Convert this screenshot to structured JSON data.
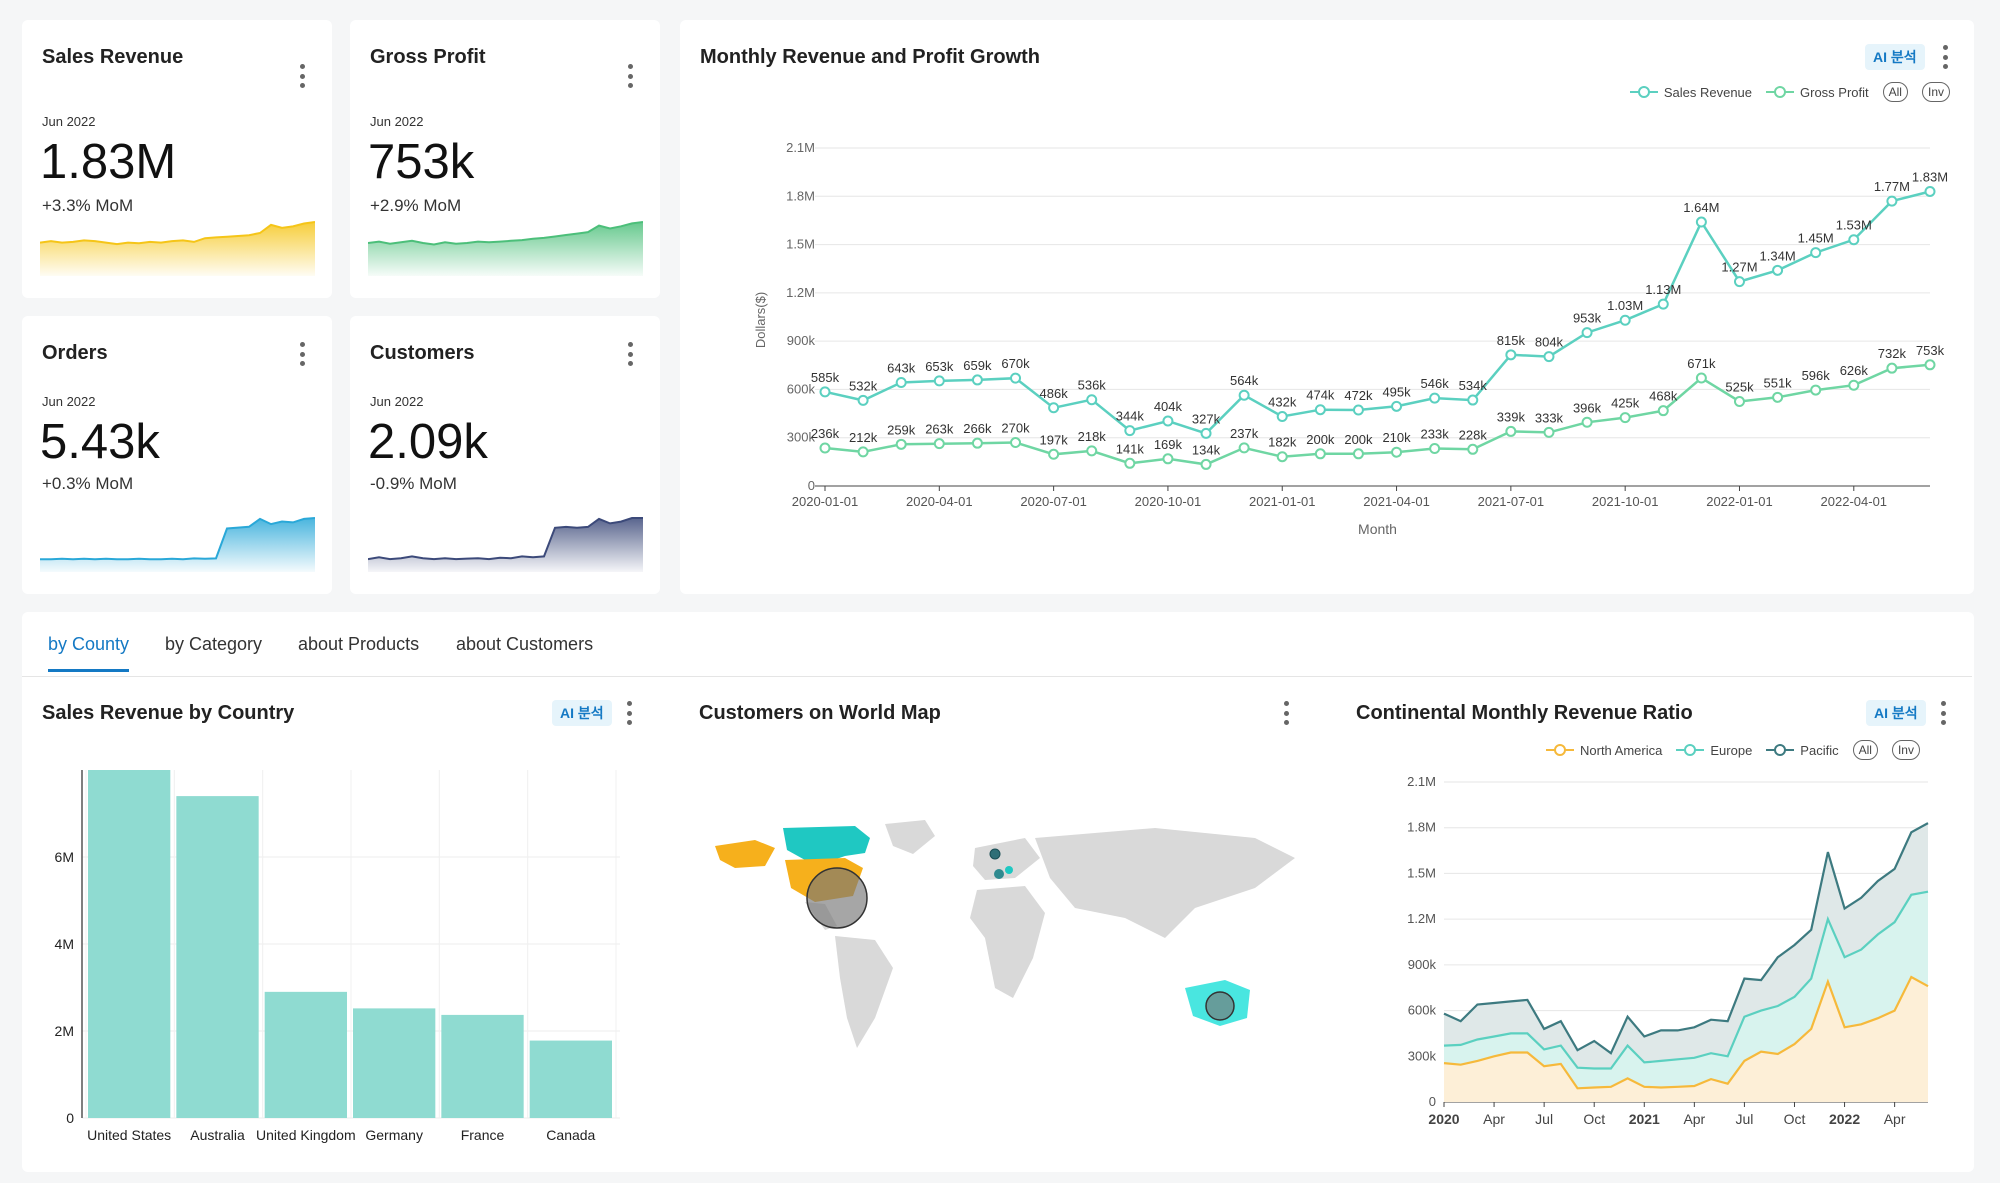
{
  "kpis": [
    {
      "title": "Sales Revenue",
      "date": "Jun 2022",
      "value": "1.83M",
      "delta": "+3.3% MoM",
      "color": "#f5c518",
      "spark": [
        4,
        4.2,
        4,
        4.1,
        4.3,
        4.2,
        4.0,
        3.8,
        4.0,
        3.9,
        4.1,
        4.0,
        4.2,
        4.3,
        4.1,
        4.6,
        4.7,
        4.8,
        4.9,
        5.0,
        5.3,
        6.4,
        6.0,
        6.2,
        6.6,
        6.8
      ]
    },
    {
      "title": "Gross Profit",
      "date": "Jun 2022",
      "value": "753k",
      "delta": "+2.9% MoM",
      "color": "#4cbf7a",
      "spark": [
        4,
        4.2,
        3.9,
        4.1,
        4.3,
        4.0,
        3.8,
        4.1,
        3.9,
        4.0,
        4.2,
        4.1,
        4.2,
        4.3,
        4.4,
        4.6,
        4.7,
        4.9,
        5.1,
        5.3,
        5.5,
        6.4,
        6.0,
        6.3,
        6.7,
        6.9
      ]
    },
    {
      "title": "Orders",
      "date": "Jun 2022",
      "value": "5.43k",
      "delta": "+0.3% MoM",
      "color": "#2aa8d8",
      "spark": [
        1,
        1,
        1.05,
        1,
        1.05,
        1,
        1.05,
        1,
        1,
        1.05,
        1,
        1,
        1.05,
        1,
        1.1,
        1.05,
        1.1,
        4.5,
        4.6,
        4.7,
        5.6,
        5.0,
        5.3,
        5.2,
        5.6,
        5.7
      ]
    },
    {
      "title": "Customers",
      "date": "Jun 2022",
      "value": "2.09k",
      "delta": "-0.9% MoM",
      "color": "#3c4a7a",
      "spark": [
        1,
        1.2,
        1,
        1.1,
        1.3,
        1.1,
        1,
        1.1,
        1,
        1.05,
        1.1,
        1.0,
        1.15,
        1.1,
        1.3,
        1.2,
        1.3,
        4.5,
        4.6,
        4.5,
        4.6,
        5.5,
        5.0,
        5.2,
        5.6,
        5.6
      ]
    }
  ],
  "main_chart": {
    "title": "Monthly Revenue and Profit Growth",
    "ai_label": "AI 분석",
    "legend": [
      "Sales Revenue",
      "Gross Profit"
    ],
    "all_label": "All",
    "inv_label": "Inv",
    "ylabel": "Dollars($)",
    "xlabel": "Month",
    "y_ticks": [
      "0",
      "300k",
      "600k",
      "900k",
      "1.2M",
      "1.5M",
      "1.8M",
      "2.1M"
    ],
    "x_ticks": [
      "2020-01-01",
      "2020-04-01",
      "2020-07-01",
      "2020-10-01",
      "2021-01-01",
      "2021-04-01",
      "2021-07-01",
      "2021-10-01",
      "2022-01-01",
      "2022-04-01"
    ]
  },
  "chart_data": [
    {
      "type": "line",
      "title": "Monthly Revenue and Profit Growth",
      "xlabel": "Month",
      "ylabel": "Dollars($)",
      "ylim": [
        0,
        2100000
      ],
      "x": [
        "2020-01",
        "2020-02",
        "2020-03",
        "2020-04",
        "2020-05",
        "2020-06",
        "2020-07",
        "2020-08",
        "2020-09",
        "2020-10",
        "2020-11",
        "2020-12",
        "2021-01",
        "2021-02",
        "2021-03",
        "2021-04",
        "2021-05",
        "2021-06",
        "2021-07",
        "2021-08",
        "2021-09",
        "2021-10",
        "2021-11",
        "2021-12",
        "2022-01",
        "2022-02",
        "2022-03",
        "2022-04",
        "2022-05",
        "2022-06"
      ],
      "series": [
        {
          "name": "Sales Revenue",
          "values": [
            585000,
            532000,
            643000,
            653000,
            659000,
            670000,
            486000,
            536000,
            344000,
            404000,
            327000,
            564000,
            432000,
            474000,
            472000,
            495000,
            546000,
            534000,
            815000,
            804000,
            953000,
            1030000,
            1130000,
            1640000,
            1270000,
            1340000,
            1450000,
            1530000,
            1770000,
            1830000
          ],
          "labels": [
            "585k",
            "532k",
            "643k",
            "653k",
            "659k",
            "670k",
            "486k",
            "536k",
            "344k",
            "404k",
            "327k",
            "564k",
            "432k",
            "474k",
            "472k",
            "495k",
            "546k",
            "534k",
            "815k",
            "804k",
            "953k",
            "1.03M",
            "1.13M",
            "1.64M",
            "1.27M",
            "1.34M",
            "1.45M",
            "1.53M",
            "1.77M",
            "1.83M"
          ]
        },
        {
          "name": "Gross Profit",
          "values": [
            236000,
            212000,
            259000,
            263000,
            266000,
            270000,
            197000,
            218000,
            141000,
            169000,
            134000,
            237000,
            182000,
            200000,
            200000,
            210000,
            233000,
            228000,
            339000,
            333000,
            396000,
            425000,
            468000,
            671000,
            525000,
            551000,
            596000,
            626000,
            732000,
            753000
          ],
          "labels": [
            "236k",
            "212k",
            "259k",
            "263k",
            "266k",
            "270k",
            "197k",
            "218k",
            "141k",
            "169k",
            "134k",
            "237k",
            "182k",
            "200k",
            "200k",
            "210k",
            "233k",
            "228k",
            "339k",
            "333k",
            "396k",
            "425k",
            "468k",
            "671k",
            "525k",
            "551k",
            "596k",
            "626k",
            "732k",
            "753k"
          ]
        }
      ]
    },
    {
      "type": "bar",
      "title": "Sales Revenue by Country",
      "categories": [
        "United States",
        "Australia",
        "United Kingdom",
        "Germany",
        "France",
        "Canada"
      ],
      "values": [
        8000000,
        7400000,
        2900000,
        2520000,
        2370000,
        1780000
      ],
      "y_ticks": [
        "0",
        "2M",
        "4M",
        "6M"
      ],
      "ylim": [
        0,
        8000000
      ]
    },
    {
      "type": "area",
      "title": "Continental Monthly Revenue Ratio",
      "ylim": [
        0,
        2100000
      ],
      "x_ticks": [
        "2020",
        "Apr",
        "Jul",
        "Oct",
        "2021",
        "Apr",
        "Jul",
        "Oct",
        "2022",
        "Apr"
      ],
      "y_ticks": [
        "0",
        "300k",
        "600k",
        "900k",
        "1.2M",
        "1.5M",
        "1.8M",
        "2.1M"
      ],
      "series": [
        {
          "name": "North America",
          "values": [
            255000,
            245000,
            270000,
            300000,
            325000,
            325000,
            235000,
            250000,
            90000,
            95000,
            100000,
            155000,
            100000,
            95000,
            100000,
            105000,
            150000,
            120000,
            270000,
            330000,
            315000,
            380000,
            480000,
            790000,
            490000,
            510000,
            550000,
            600000,
            820000,
            760000
          ]
        },
        {
          "name": "Europe",
          "values": [
            370000,
            375000,
            410000,
            430000,
            450000,
            450000,
            345000,
            370000,
            225000,
            220000,
            220000,
            370000,
            260000,
            270000,
            280000,
            290000,
            320000,
            300000,
            560000,
            600000,
            630000,
            690000,
            810000,
            1200000,
            950000,
            1000000,
            1100000,
            1180000,
            1360000,
            1380000
          ]
        },
        {
          "name": "Pacific",
          "values": [
            580000,
            530000,
            640000,
            650000,
            660000,
            670000,
            480000,
            530000,
            340000,
            400000,
            320000,
            560000,
            430000,
            470000,
            470000,
            490000,
            540000,
            530000,
            810000,
            800000,
            950000,
            1030000,
            1130000,
            1640000,
            1270000,
            1340000,
            1450000,
            1530000,
            1770000,
            1830000
          ]
        }
      ]
    }
  ],
  "tabs": [
    "by County",
    "by Category",
    "about Products",
    "about Customers"
  ],
  "bar_panel": {
    "title": "Sales Revenue by Country",
    "ai_label": "AI 분석"
  },
  "map_panel": {
    "title": "Customers on World Map"
  },
  "area_panel": {
    "title": "Continental Monthly Revenue Ratio",
    "ai_label": "AI 분석",
    "legend": [
      "North America",
      "Europe",
      "Pacific"
    ],
    "all_label": "All",
    "inv_label": "Inv"
  },
  "colors": {
    "teal": "#5bd0c0",
    "teal_fill": "#8fdbd1",
    "orange": "#f6b93b",
    "dark_teal": "#3d7a80",
    "blue": "#1479c4"
  }
}
